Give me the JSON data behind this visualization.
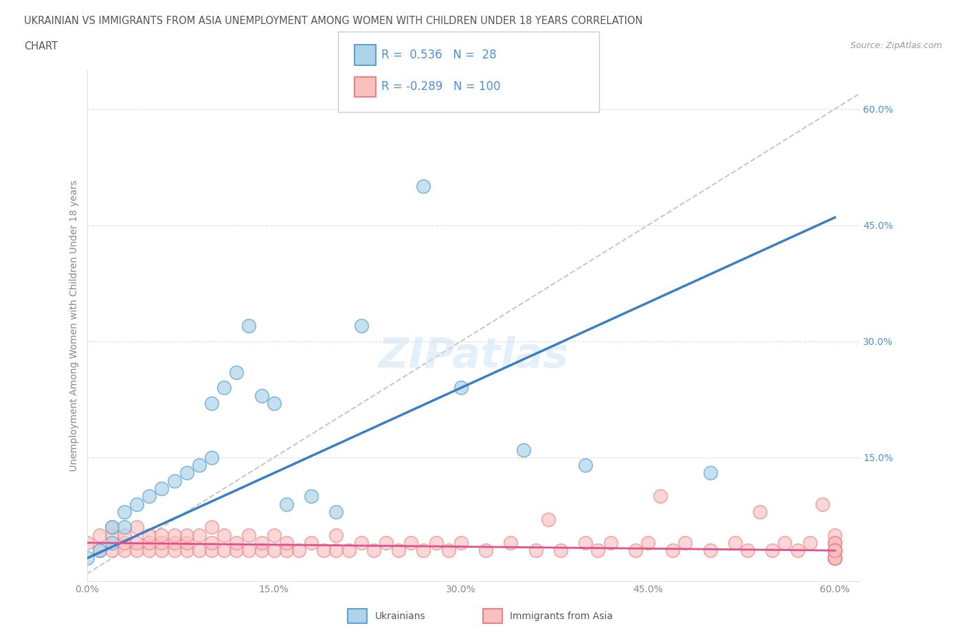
{
  "title_line1": "UKRAINIAN VS IMMIGRANTS FROM ASIA UNEMPLOYMENT AMONG WOMEN WITH CHILDREN UNDER 18 YEARS CORRELATION",
  "title_line2": "CHART",
  "source_text": "Source: ZipAtlas.com",
  "ylabel": "Unemployment Among Women with Children Under 18 years",
  "xlim": [
    0.0,
    0.62
  ],
  "ylim": [
    -0.01,
    0.65
  ],
  "xtick_labels": [
    "0.0%",
    "15.0%",
    "30.0%",
    "45.0%",
    "60.0%"
  ],
  "xtick_values": [
    0.0,
    0.15,
    0.3,
    0.45,
    0.6
  ],
  "ytick_right_labels": [
    "15.0%",
    "30.0%",
    "45.0%",
    "60.0%"
  ],
  "ytick_right_values": [
    0.15,
    0.3,
    0.45,
    0.6
  ],
  "ukrainian_color_edge": "#5ba3d0",
  "ukrainian_color_fill": "#aed4ea",
  "asian_color_edge": "#f08080",
  "asian_color_fill": "#f9c0c0",
  "trend_blue": "#3a7fc1",
  "trend_pink": "#e05090",
  "R_ukrainian": 0.536,
  "N_ukrainian": 28,
  "R_asian": -0.289,
  "N_asian": 100,
  "legend_label_ukrainian": "Ukrainians",
  "legend_label_asian": "Immigrants from Asia",
  "watermark_text": "ZIPatlas",
  "ref_line_color": "#bbbbbb",
  "grid_color": "#dddddd",
  "tick_label_color": "#888888",
  "right_tick_color": "#4a90d9",
  "title_color": "#555555",
  "ukrainian_x": [
    0.0,
    0.01,
    0.02,
    0.02,
    0.03,
    0.03,
    0.04,
    0.05,
    0.06,
    0.07,
    0.08,
    0.09,
    0.1,
    0.1,
    0.11,
    0.12,
    0.13,
    0.14,
    0.15,
    0.16,
    0.18,
    0.2,
    0.22,
    0.27,
    0.3,
    0.35,
    0.4,
    0.5
  ],
  "ukrainian_y": [
    0.02,
    0.03,
    0.04,
    0.06,
    0.06,
    0.08,
    0.09,
    0.1,
    0.11,
    0.12,
    0.13,
    0.14,
    0.15,
    0.22,
    0.24,
    0.26,
    0.32,
    0.23,
    0.22,
    0.09,
    0.1,
    0.08,
    0.32,
    0.5,
    0.24,
    0.16,
    0.14,
    0.13
  ],
  "asian_x": [
    0.0,
    0.01,
    0.01,
    0.02,
    0.02,
    0.02,
    0.03,
    0.03,
    0.03,
    0.04,
    0.04,
    0.04,
    0.05,
    0.05,
    0.05,
    0.06,
    0.06,
    0.06,
    0.07,
    0.07,
    0.07,
    0.08,
    0.08,
    0.08,
    0.09,
    0.09,
    0.1,
    0.1,
    0.1,
    0.11,
    0.11,
    0.12,
    0.12,
    0.13,
    0.13,
    0.14,
    0.14,
    0.15,
    0.15,
    0.16,
    0.16,
    0.17,
    0.18,
    0.19,
    0.2,
    0.2,
    0.21,
    0.22,
    0.23,
    0.24,
    0.25,
    0.26,
    0.27,
    0.28,
    0.29,
    0.3,
    0.32,
    0.34,
    0.36,
    0.37,
    0.38,
    0.4,
    0.41,
    0.42,
    0.44,
    0.45,
    0.46,
    0.47,
    0.48,
    0.5,
    0.52,
    0.53,
    0.54,
    0.55,
    0.56,
    0.57,
    0.58,
    0.59,
    0.6,
    0.6,
    0.6,
    0.6,
    0.6,
    0.6,
    0.6,
    0.6,
    0.6,
    0.6,
    0.6,
    0.6,
    0.6,
    0.6,
    0.6,
    0.6,
    0.6,
    0.6,
    0.6,
    0.6,
    0.6,
    0.6
  ],
  "asian_y": [
    0.04,
    0.03,
    0.05,
    0.03,
    0.05,
    0.06,
    0.03,
    0.04,
    0.05,
    0.03,
    0.04,
    0.06,
    0.03,
    0.04,
    0.05,
    0.03,
    0.04,
    0.05,
    0.03,
    0.04,
    0.05,
    0.03,
    0.04,
    0.05,
    0.03,
    0.05,
    0.03,
    0.04,
    0.06,
    0.03,
    0.05,
    0.03,
    0.04,
    0.03,
    0.05,
    0.03,
    0.04,
    0.03,
    0.05,
    0.03,
    0.04,
    0.03,
    0.04,
    0.03,
    0.03,
    0.05,
    0.03,
    0.04,
    0.03,
    0.04,
    0.03,
    0.04,
    0.03,
    0.04,
    0.03,
    0.04,
    0.03,
    0.04,
    0.03,
    0.07,
    0.03,
    0.04,
    0.03,
    0.04,
    0.03,
    0.04,
    0.1,
    0.03,
    0.04,
    0.03,
    0.04,
    0.03,
    0.08,
    0.03,
    0.04,
    0.03,
    0.04,
    0.09,
    0.02,
    0.03,
    0.04,
    0.05,
    0.02,
    0.03,
    0.04,
    0.02,
    0.03,
    0.04,
    0.02,
    0.03,
    0.02,
    0.03,
    0.02,
    0.03,
    0.02,
    0.03,
    0.02,
    0.03,
    0.02,
    0.03
  ]
}
